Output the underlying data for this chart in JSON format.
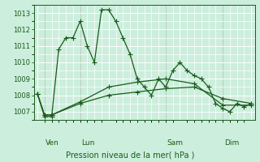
{
  "background_color": "#cceedd",
  "grid_color": "#ffffff",
  "line_color": "#1a5c1a",
  "xlabel": "Pression niveau de la mer( hPa )",
  "yticks": [
    1007,
    1008,
    1009,
    1010,
    1011,
    1012,
    1013
  ],
  "ylim": [
    1006.5,
    1013.5
  ],
  "xlim": [
    -0.5,
    30.5
  ],
  "day_labels": [
    "Ven",
    "Lun",
    "Sam",
    "Dim"
  ],
  "day_positions": [
    1,
    6,
    18,
    26
  ],
  "vline_positions": [
    1,
    6,
    18,
    26
  ],
  "series1_x": [
    0,
    1,
    2,
    3,
    4,
    5,
    6,
    7,
    8,
    9,
    10,
    11,
    12,
    13,
    14,
    15,
    16,
    17,
    18,
    19,
    20,
    21,
    22,
    23,
    24,
    25,
    26,
    27,
    28,
    29,
    30
  ],
  "series1_y": [
    1008.1,
    1006.7,
    1006.7,
    1010.8,
    1011.5,
    1011.5,
    1012.5,
    1011.0,
    1010.0,
    1013.2,
    1013.2,
    1012.5,
    1011.5,
    1010.5,
    1009.0,
    1008.5,
    1008.0,
    1009.0,
    1008.5,
    1009.5,
    1010.0,
    1009.5,
    1009.2,
    1009.0,
    1008.5,
    1007.5,
    1007.2,
    1007.0,
    1007.5,
    1007.3,
    1007.5
  ],
  "series2_x": [
    0,
    1,
    2,
    6,
    10,
    14,
    18,
    22,
    26,
    30
  ],
  "series2_y": [
    1008.1,
    1006.8,
    1006.8,
    1007.5,
    1008.0,
    1008.2,
    1008.4,
    1008.5,
    1007.8,
    1007.5
  ],
  "series3_x": [
    0,
    1,
    2,
    6,
    10,
    14,
    18,
    22,
    26,
    30
  ],
  "series3_y": [
    1008.1,
    1006.8,
    1006.8,
    1007.6,
    1008.5,
    1008.8,
    1009.0,
    1008.7,
    1007.4,
    1007.4
  ],
  "marker_size": 2.5,
  "line_width": 0.9,
  "tick_fontsize": 6,
  "xlabel_fontsize": 7,
  "day_label_fontsize": 6.5
}
